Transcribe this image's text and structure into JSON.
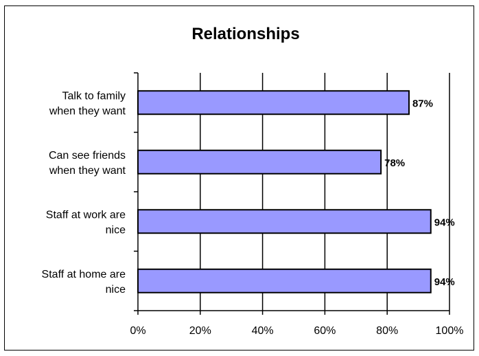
{
  "chart_data": {
    "type": "bar",
    "orientation": "horizontal",
    "title": "Relationships",
    "categories": [
      [
        "Talk to family",
        "when they want"
      ],
      [
        "Can see friends",
        "when they want"
      ],
      [
        "Staff at work are",
        "nice"
      ],
      [
        "Staff at home are",
        "nice"
      ]
    ],
    "values": [
      87,
      78,
      94,
      94
    ],
    "data_labels": [
      "87%",
      "78%",
      "94%",
      "94%"
    ],
    "x_ticks": [
      "0%",
      "20%",
      "40%",
      "60%",
      "80%",
      "100%"
    ],
    "xlim": [
      0,
      100
    ],
    "xlabel": "",
    "ylabel": "",
    "grid": true,
    "legend": false,
    "colors": {
      "bar_fill": "#9999ff",
      "bar_stroke": "#000000",
      "grid": "#000000"
    }
  }
}
